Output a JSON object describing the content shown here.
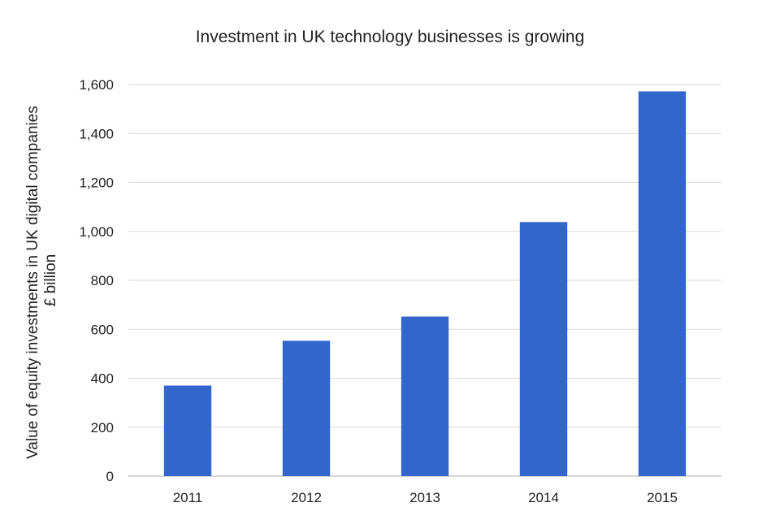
{
  "chart_data": {
    "type": "bar",
    "title": "Investment in UK technology businesses is growing",
    "ylabel_lines": [
      "Value of equity investments in UK digital companies",
      "£ billion"
    ],
    "xlabel": "",
    "categories": [
      "2011",
      "2012",
      "2013",
      "2014",
      "2015"
    ],
    "values": [
      370,
      553,
      652,
      1038,
      1572
    ],
    "ylim": [
      0,
      1600
    ],
    "yticks": [
      0,
      200,
      400,
      600,
      800,
      1000,
      1200,
      1400,
      1600
    ],
    "ytick_labels": [
      "0",
      "200",
      "400",
      "600",
      "800",
      "1,000",
      "1,200",
      "1,400",
      "1,600"
    ],
    "grid": true,
    "legend": "none",
    "bar_color": "#3366cc"
  }
}
